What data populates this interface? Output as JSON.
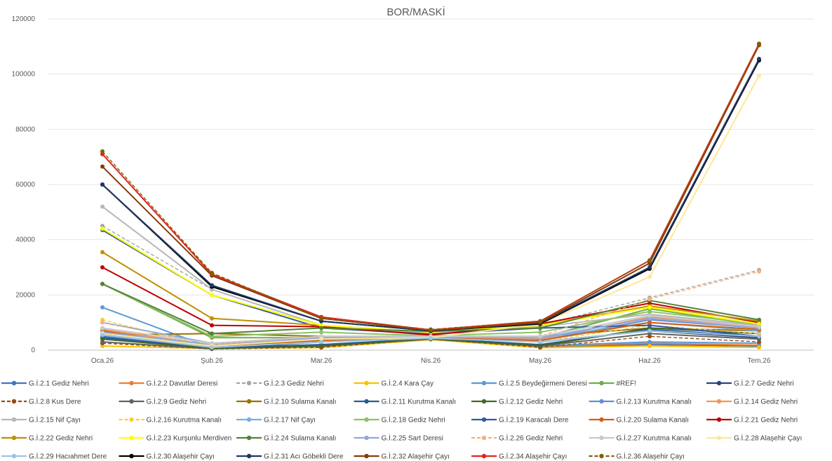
{
  "chart_data": {
    "type": "line",
    "title": "BOR/MASKİ",
    "xlabel": "",
    "ylabel": "",
    "categories": [
      "Oca.26",
      "Şub.26",
      "Mar.26",
      "Nis.26",
      "May.26",
      "Haz.26",
      "Tem.26"
    ],
    "ylim": [
      0,
      120000
    ],
    "yticks": [
      "0",
      "20000",
      "40000",
      "60000",
      "80000",
      "100000",
      "120000"
    ],
    "grid": true,
    "legend_position": "bottom",
    "series": [
      {
        "name": "G.İ.2.1 Gediz Nehri",
        "color": "#4472C4",
        "dash": "solid",
        "values": [
          5000,
          800,
          1200,
          4000,
          1200,
          2000,
          1500
        ]
      },
      {
        "name": "G.İ.2.2 Davutlar Deresi",
        "color": "#ED7D31",
        "dash": "solid",
        "values": [
          7000,
          1000,
          1400,
          4100,
          1400,
          2500,
          1800
        ]
      },
      {
        "name": "G.İ.2.3 Gediz Nehri",
        "color": "#A5A5A5",
        "dash": "dashed",
        "values": [
          45000,
          22000,
          9000,
          6000,
          9000,
          19000,
          29000
        ]
      },
      {
        "name": "G.İ.2.4 Kara Çay",
        "color": "#FFC000",
        "dash": "solid",
        "values": [
          1500,
          600,
          900,
          3800,
          900,
          1500,
          1000
        ]
      },
      {
        "name": "G.İ.2.5 Beydeğirmeni Deresi",
        "color": "#5B9BD5",
        "dash": "solid",
        "values": [
          15500,
          800,
          1500,
          4000,
          1500,
          3000,
          2500
        ]
      },
      {
        "name": "#REF!",
        "color": "#70AD47",
        "dash": "solid",
        "values": [
          24000,
          4500,
          4500,
          5000,
          4500,
          15000,
          9000
        ]
      },
      {
        "name": "G.İ.2.7 Gediz Nehri",
        "color": "#264478",
        "dash": "solid",
        "values": [
          6000,
          500,
          3000,
          4500,
          3000,
          7000,
          4500
        ]
      },
      {
        "name": "G.İ.2.8 Kus Dere",
        "color": "#9E480E",
        "dash": "dashed",
        "values": [
          2500,
          400,
          1000,
          4000,
          1000,
          5000,
          3000
        ]
      },
      {
        "name": "G.İ.2.9 Gediz Nehri",
        "color": "#636363",
        "dash": "solid",
        "values": [
          3000,
          500,
          1500,
          4000,
          1500,
          6000,
          4000
        ]
      },
      {
        "name": "G.İ.2.10 Sulama Kanalı",
        "color": "#997300",
        "dash": "solid",
        "values": [
          5500,
          6000,
          5000,
          5000,
          5000,
          8000,
          7000
        ]
      },
      {
        "name": "G.İ.2.11 Kurutma Kanalı",
        "color": "#255E91",
        "dash": "solid",
        "values": [
          4500,
          800,
          2000,
          4200,
          2000,
          7500,
          5000
        ]
      },
      {
        "name": "G.İ.2.12 Gediz Nehri",
        "color": "#43682B",
        "dash": "solid",
        "values": [
          4000,
          600,
          1500,
          4100,
          1500,
          8000,
          6000
        ]
      },
      {
        "name": "G.İ.2.13 Kurutma Kanalı",
        "color": "#698ED0",
        "dash": "solid",
        "values": [
          6500,
          1500,
          3500,
          4500,
          3500,
          11000,
          8000
        ]
      },
      {
        "name": "G.İ.2.14 Gediz Nehri",
        "color": "#F1975A",
        "dash": "solid",
        "values": [
          7500,
          1800,
          4000,
          4600,
          4000,
          12000,
          8500
        ]
      },
      {
        "name": "G.İ.2.15 Nif Çayı",
        "color": "#B7B7B7",
        "dash": "solid",
        "values": [
          52000,
          22000,
          9000,
          6000,
          8500,
          13000,
          9000
        ]
      },
      {
        "name": "G.İ.2.16 Kurutma Kanalı",
        "color": "#FFCD33",
        "dash": "dashed",
        "values": [
          11000,
          1000,
          3000,
          4300,
          3000,
          9000,
          6000
        ]
      },
      {
        "name": "G.İ.2.17 Nif Çayı",
        "color": "#7CAFDD",
        "dash": "solid",
        "values": [
          10000,
          2500,
          4500,
          4800,
          4500,
          10000,
          7000
        ]
      },
      {
        "name": "G.İ.2.18 Gediz Nehri",
        "color": "#8CC168",
        "dash": "solid",
        "values": [
          24000,
          5000,
          6500,
          5200,
          6500,
          14000,
          9500
        ]
      },
      {
        "name": "G.İ.2.19 Karacalı Dere",
        "color": "#335AA1",
        "dash": "solid",
        "values": [
          43500,
          20000,
          8000,
          5800,
          8000,
          9000,
          5000
        ]
      },
      {
        "name": "G.İ.2.20 Sulama Kanalı",
        "color": "#D26012",
        "dash": "solid",
        "values": [
          7000,
          1200,
          3500,
          4400,
          3500,
          10000,
          7500
        ]
      },
      {
        "name": "G.İ.2.21 Gediz Nehri",
        "color": "#C00000",
        "dash": "solid",
        "values": [
          30000,
          9000,
          8500,
          5500,
          9500,
          17000,
          10000
        ]
      },
      {
        "name": "G.İ.2.22 Gediz Nehri",
        "color": "#BF9000",
        "dash": "solid",
        "values": [
          35500,
          11500,
          9000,
          6500,
          9000,
          16000,
          10500
        ]
      },
      {
        "name": "G.İ.2.23 Kurşunlu Merdiven",
        "color": "#FFFF00",
        "dash": "solid",
        "values": [
          44000,
          20000,
          9000,
          6500,
          9000,
          15500,
          9500
        ]
      },
      {
        "name": "G.İ.2.24 Sulama Kanalı",
        "color": "#548235",
        "dash": "solid",
        "values": [
          24000,
          6000,
          8000,
          6800,
          8000,
          18000,
          11000
        ]
      },
      {
        "name": "G.İ.2.25 Sart Deresi",
        "color": "#8FAADC",
        "dash": "solid",
        "values": [
          6500,
          2000,
          4500,
          4700,
          4500,
          11500,
          8000
        ]
      },
      {
        "name": "G.İ.2.26 Gediz Nehri",
        "color": "#F4B183",
        "dash": "dashed",
        "values": [
          10000,
          2000,
          5000,
          5000,
          5000,
          18500,
          28500
        ]
      },
      {
        "name": "G.İ.2.27 Kurutma Kanalı",
        "color": "#C9C9C9",
        "dash": "solid",
        "values": [
          8000,
          2500,
          5000,
          5000,
          5000,
          12500,
          8500
        ]
      },
      {
        "name": "G.İ.2.28 Alaşehir Çayı",
        "color": "#FFE699",
        "dash": "solid",
        "values": [
          6000,
          1500,
          4000,
          4500,
          9500,
          26500,
          99500
        ]
      },
      {
        "name": "G.İ.2.29 Hacıahmet Dere",
        "color": "#9DC3E6",
        "dash": "solid",
        "values": [
          5500,
          1000,
          3000,
          4300,
          3000,
          7000,
          5000
        ]
      },
      {
        "name": "G.İ.2.30 Alaşehir Çayı",
        "color": "#000000",
        "dash": "solid",
        "values": [
          60000,
          23000,
          10500,
          7000,
          9500,
          29500,
          105000
        ]
      },
      {
        "name": "G.İ.2.31 Acı Göbekli Dere",
        "color": "#203864",
        "dash": "solid",
        "values": [
          60000,
          23500,
          10500,
          7000,
          9800,
          30000,
          105500
        ]
      },
      {
        "name": "G.İ.2.32 Alaşehir Çayı",
        "color": "#843C0C",
        "dash": "solid",
        "values": [
          66500,
          27000,
          11500,
          7200,
          10000,
          31500,
          110500
        ]
      },
      {
        "name": "G.İ.2.34 Alaşehir Çayı",
        "color": "#E1261C",
        "dash": "solid",
        "values": [
          71000,
          27500,
          12000,
          7300,
          10500,
          32500,
          111000
        ]
      },
      {
        "name": "G.İ.2.36 Alaşehir Çayı",
        "color": "#7F6000",
        "dash": "dashed",
        "values": [
          72000,
          28000,
          11500,
          7500,
          10500,
          32500,
          111000
        ]
      }
    ]
  }
}
